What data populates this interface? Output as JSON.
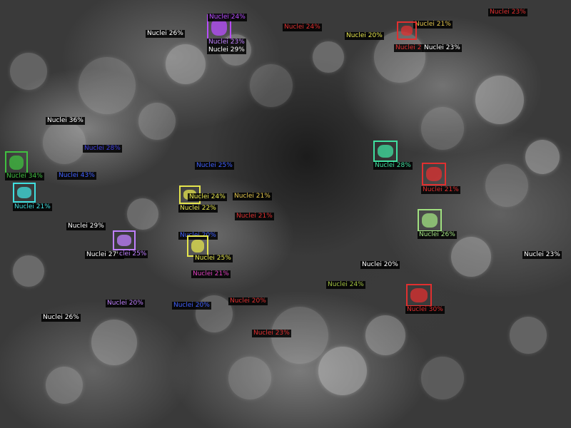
{
  "detections": [
    {
      "label": "Nuclei 24%",
      "color": "#b84dff",
      "box": true
    },
    {
      "label": "Nuclei 23%",
      "color": "#c080ff",
      "box": false
    },
    {
      "label": "Nuclei 29%",
      "color": "#ffffff",
      "box": false
    },
    {
      "label": "Nuclei 26%",
      "color": "#ffffff",
      "box": false
    },
    {
      "label": "Nuclei 24%",
      "color": "#e03030",
      "box": false
    },
    {
      "label": "Nuclei 20%",
      "color": "#e6e64d",
      "box": false
    },
    {
      "label": "Nuclei 21%",
      "color": "#e6c84d",
      "box": false
    },
    {
      "label": "Nuclei 2",
      "color": "#e03030",
      "box": true
    },
    {
      "label": "Nuclei 23%",
      "color": "#ffffff",
      "box": false
    },
    {
      "label": "Nuclei 23%",
      "color": "#e03030",
      "box": false
    },
    {
      "label": "Nuclei 36%",
      "color": "#ffffff",
      "box": false
    },
    {
      "label": "Nuclei 28%",
      "color": "#4040e0",
      "box": false
    },
    {
      "label": "Nuclei 34%",
      "color": "#40c040",
      "box": true
    },
    {
      "label": "Nuclei 43%",
      "color": "#4060ff",
      "box": false
    },
    {
      "label": "Nuclei 21%",
      "color": "#40e0e0",
      "box": true
    },
    {
      "label": "Nuclei 25%",
      "color": "#4060ff",
      "box": false
    },
    {
      "label": "Nuclei 24%",
      "color": "#e6e64d",
      "box": true
    },
    {
      "label": "Nuclei 22%",
      "color": "#e6e64d",
      "box": false
    },
    {
      "label": "Nuclei 21%",
      "color": "#e6c84d",
      "box": false
    },
    {
      "label": "Nuclei 21%",
      "color": "#e03030",
      "box": false
    },
    {
      "label": "Nuclei 29%",
      "color": "#ffffff",
      "box": false
    },
    {
      "label": "Nuclei 20%",
      "color": "#4060ff",
      "box": false
    },
    {
      "label": "Nuclei 27%",
      "color": "#ffffff",
      "box": false
    },
    {
      "label": "clei 25%",
      "color": "#c080ff",
      "box": true
    },
    {
      "label": "Nuclei 25%",
      "color": "#e6e64d",
      "box": true
    },
    {
      "label": "Nuclei 21%",
      "color": "#e040c0",
      "box": false
    },
    {
      "label": "Nuclei 28%",
      "color": "#40e0a0",
      "box": true
    },
    {
      "label": "Nuclei 21%",
      "color": "#e03030",
      "box": true
    },
    {
      "label": "Nuclei 26%",
      "color": "#a0e080",
      "box": true
    },
    {
      "label": "Nuclei 20%",
      "color": "#ffffff",
      "box": false
    },
    {
      "label": "Nuclei 24%",
      "color": "#a0c040",
      "box": false
    },
    {
      "label": "Nuclei 30%",
      "color": "#e03030",
      "box": true
    },
    {
      "label": "Nuclei 23%",
      "color": "#ffffff",
      "box": false
    },
    {
      "label": "Nuclei 20%",
      "color": "#c080ff",
      "box": false
    },
    {
      "label": "Nuclei 20%",
      "color": "#4060ff",
      "box": false
    },
    {
      "label": "Nuclei 20%",
      "color": "#e03030",
      "box": false
    },
    {
      "label": "Nuclei 26%",
      "color": "#ffffff",
      "box": false
    },
    {
      "label": "Nuclei 23%",
      "color": "#e03030",
      "box": false
    }
  ]
}
